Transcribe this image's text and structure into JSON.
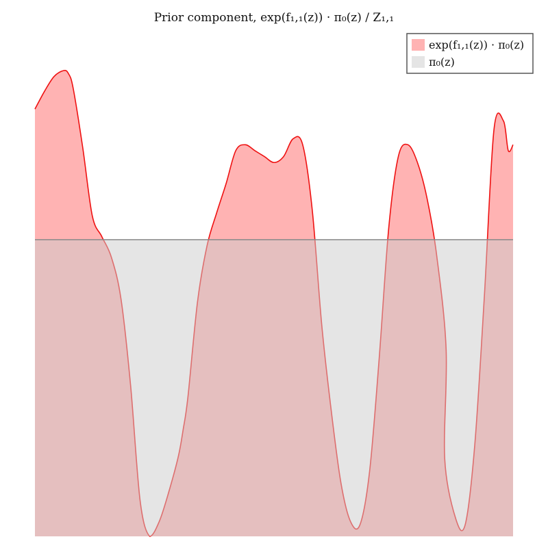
{
  "chart_data": {
    "type": "area",
    "title": "Prior component, exp(f₁,₁(z)) · π₀(z) / Z₁,₁",
    "xlabel": "",
    "ylabel": "",
    "grid": false,
    "axes_visible": false,
    "legend_position": "top-right",
    "xlim": [
      0,
      1
    ],
    "ylim": [
      0,
      1.6
    ],
    "series": [
      {
        "name": "exp(f₁,₁(z)) · π₀(z)",
        "fill_color": "#ff9999",
        "line_color": "#ee1111",
        "x": [
          0.0,
          0.02,
          0.04,
          0.06,
          0.07,
          0.08,
          0.1,
          0.12,
          0.14,
          0.16,
          0.18,
          0.2,
          0.22,
          0.24,
          0.26,
          0.28,
          0.3,
          0.31,
          0.32,
          0.34,
          0.36,
          0.38,
          0.4,
          0.42,
          0.44,
          0.46,
          0.48,
          0.5,
          0.52,
          0.54,
          0.56,
          0.58,
          0.6,
          0.62,
          0.64,
          0.66,
          0.68,
          0.7,
          0.72,
          0.74,
          0.76,
          0.78,
          0.8,
          0.82,
          0.84,
          0.86,
          0.8571,
          0.88,
          0.9,
          0.92,
          0.94,
          0.96,
          0.98,
          0.99,
          1.0
        ],
        "y": [
          1.44,
          1.5,
          1.55,
          1.57,
          1.56,
          1.51,
          1.31,
          1.08,
          1.01,
          0.94,
          0.8,
          0.51,
          0.12,
          0.0,
          0.05,
          0.15,
          0.27,
          0.36,
          0.47,
          0.79,
          0.98,
          1.09,
          1.19,
          1.3,
          1.32,
          1.3,
          1.28,
          1.26,
          1.28,
          1.34,
          1.32,
          1.1,
          0.71,
          0.42,
          0.18,
          0.05,
          0.04,
          0.22,
          0.6,
          1.04,
          1.28,
          1.32,
          1.26,
          1.14,
          0.95,
          0.63,
          0.26,
          0.06,
          0.04,
          0.31,
          0.81,
          1.37,
          1.4,
          1.3,
          1.32
        ]
      },
      {
        "name": "π₀(z)",
        "fill_color": "#cccccc",
        "line_color": "#888888",
        "x": [
          0.0,
          1.0
        ],
        "y": [
          1.0,
          1.0
        ]
      }
    ]
  }
}
